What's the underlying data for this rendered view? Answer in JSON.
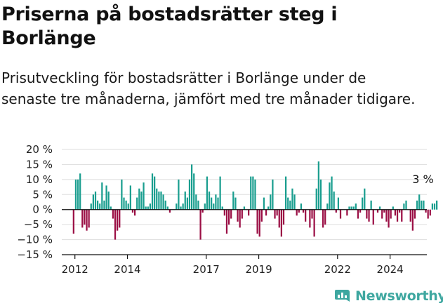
{
  "header": {
    "title": "Priserna på bostadsrätter steg i Borlänge",
    "subtitle": "Prisutveckling för bostadsrätter i Borlänge under de senaste tre månaderna, jämfört med tre månader tidigare."
  },
  "brand": {
    "name": "Newsworthy",
    "icon": "bar-chart-icon",
    "color": "#3ea7a0"
  },
  "colors": {
    "positive": "#1a9e8f",
    "negative": "#9b0f45",
    "grid": "#dddddd",
    "axis": "#111111"
  },
  "chart_data": {
    "type": "bar",
    "title": "",
    "xlabel": "",
    "ylabel": "",
    "ylim": [
      -15,
      20
    ],
    "y_ticks": [
      20,
      15,
      10,
      5,
      0,
      -5,
      -10,
      -15
    ],
    "y_tick_labels": [
      "20 %",
      "15 %",
      "10 %",
      "5 %",
      "0 %",
      "−5 %",
      "−10 %",
      "−15 %"
    ],
    "x_range": [
      2011.5,
      2025.4
    ],
    "x_ticks": [
      2012,
      2014,
      2017,
      2019,
      2022,
      2024
    ],
    "x_tick_labels": [
      "2012",
      "2014",
      "2017",
      "2019",
      "2022",
      "2024"
    ],
    "grid": true,
    "annotation": {
      "text": "3 %",
      "x": 2025.2,
      "y": 3
    },
    "series": [
      {
        "start": 2011.95,
        "step": 0.0833,
        "values": [
          -8,
          10,
          10,
          12,
          -6,
          -5,
          -7,
          -6,
          2,
          5,
          6,
          3,
          2,
          9,
          3,
          8,
          6,
          1,
          -3,
          -10,
          -7,
          -6,
          10,
          4,
          3,
          2,
          8,
          -1,
          -2,
          4,
          7,
          6,
          9,
          1,
          1,
          2,
          12,
          11,
          7,
          6,
          6,
          5,
          3,
          1,
          -1,
          0,
          0,
          2,
          10,
          1,
          2,
          6,
          4,
          10,
          15,
          12,
          5,
          3,
          -10,
          -1,
          2,
          11,
          6,
          4,
          2,
          5,
          4,
          11,
          1,
          -2,
          -8,
          -5,
          -3,
          6,
          4,
          -4,
          -6,
          -3,
          1,
          0,
          -2,
          11,
          11,
          10,
          -8,
          -9,
          -4,
          4,
          -2,
          1,
          5,
          10,
          -3,
          -2,
          -6,
          -9,
          -5,
          11,
          4,
          3,
          7,
          5,
          -2,
          -1,
          2,
          -1,
          -4,
          0,
          -6,
          -3,
          -9,
          7,
          16,
          10,
          -6,
          -5,
          2,
          9,
          11,
          6,
          -1,
          4,
          -3,
          0,
          0,
          -2,
          1,
          1,
          1,
          2,
          -3,
          -1,
          4,
          7,
          -3,
          -4,
          3,
          -5,
          0,
          -1,
          1,
          -3,
          -1,
          -4,
          -6,
          -3,
          1,
          -2,
          -4,
          -1,
          -4,
          2,
          3,
          0,
          -4,
          -7,
          -3,
          3,
          5,
          3,
          3,
          -1,
          -3,
          -2,
          2,
          2,
          3
        ]
      }
    ]
  }
}
